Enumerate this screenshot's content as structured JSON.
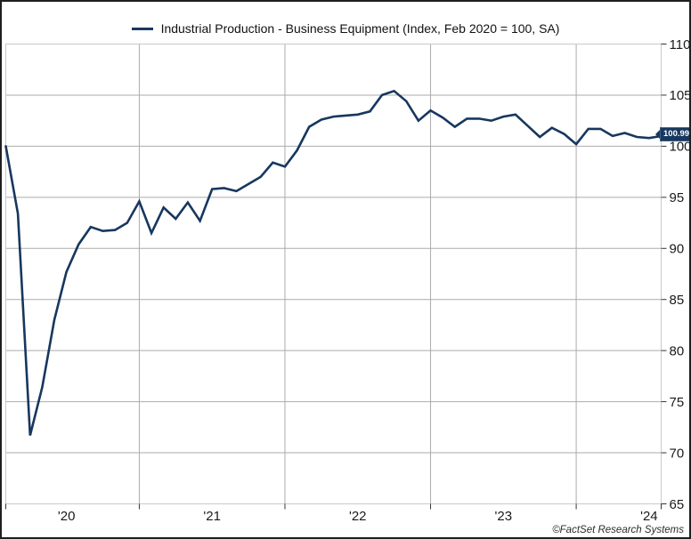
{
  "window": {
    "background": "#ffffff",
    "frame_border_color": "#1f1f1f"
  },
  "legend": {
    "label": "Industrial Production - Business Equipment (Index, Feb 2020 = 100, SA)",
    "swatch_color": "#17375e"
  },
  "last_value_badge": {
    "text": "100.99",
    "background": "#17375e",
    "text_color": "#ffffff"
  },
  "footer": {
    "credit": "©FactSet Research Systems"
  },
  "colors": {
    "line": "#17375e",
    "gridline": "#ababab",
    "plot_border": "#c9c9c9",
    "tick": "#333333",
    "axis_text": "#1a1a1a"
  },
  "chart_data": {
    "type": "line",
    "title": "Industrial Production - Business Equipment (Index, Feb 2020 = 100, SA)",
    "frequency": "monthly",
    "x_start": "2020-02",
    "x_end": "2024-08",
    "ylim": [
      65,
      110
    ],
    "grid": true,
    "legend_position": "top-center",
    "y_axis_side": "right",
    "y_ticks": [
      110,
      105,
      100,
      95,
      90,
      85,
      80,
      75,
      70,
      65
    ],
    "x_ticks": [
      {
        "label": "'20",
        "month_index": 5
      },
      {
        "label": "'21",
        "month_index": 17
      },
      {
        "label": "'22",
        "month_index": 29
      },
      {
        "label": "'23",
        "month_index": 41
      },
      {
        "label": "'24",
        "month_index": 53
      }
    ],
    "year_gridline_month_indices": [
      11,
      23,
      35,
      47
    ],
    "x": [
      "2020-02",
      "2020-03",
      "2020-04",
      "2020-05",
      "2020-06",
      "2020-07",
      "2020-08",
      "2020-09",
      "2020-10",
      "2020-11",
      "2020-12",
      "2021-01",
      "2021-02",
      "2021-03",
      "2021-04",
      "2021-05",
      "2021-06",
      "2021-07",
      "2021-08",
      "2021-09",
      "2021-10",
      "2021-11",
      "2021-12",
      "2022-01",
      "2022-02",
      "2022-03",
      "2022-04",
      "2022-05",
      "2022-06",
      "2022-07",
      "2022-08",
      "2022-09",
      "2022-10",
      "2022-11",
      "2022-12",
      "2023-01",
      "2023-02",
      "2023-03",
      "2023-04",
      "2023-05",
      "2023-06",
      "2023-07",
      "2023-08",
      "2023-09",
      "2023-10",
      "2023-11",
      "2023-12",
      "2024-01",
      "2024-02",
      "2024-03",
      "2024-04",
      "2024-05",
      "2024-06",
      "2024-07",
      "2024-08"
    ],
    "series": [
      {
        "name": "Industrial Production - Business Equipment (Index, Feb 2020 = 100, SA)",
        "color": "#17375e",
        "values": [
          100.0,
          93.4,
          71.7,
          76.4,
          83.0,
          87.7,
          90.4,
          92.1,
          91.7,
          91.8,
          92.5,
          94.6,
          91.5,
          94.0,
          92.9,
          94.5,
          92.7,
          95.8,
          95.9,
          95.6,
          96.3,
          97.0,
          98.4,
          98.0,
          99.6,
          101.9,
          102.6,
          102.9,
          103.0,
          103.1,
          103.4,
          105.0,
          105.4,
          104.4,
          102.5,
          103.5,
          102.8,
          101.9,
          102.7,
          102.7,
          102.5,
          102.9,
          103.1,
          102.0,
          100.9,
          101.8,
          101.2,
          100.2,
          101.7,
          101.7,
          101.0,
          101.3,
          100.9,
          100.8,
          100.99
        ]
      }
    ],
    "last_value": 100.99
  }
}
